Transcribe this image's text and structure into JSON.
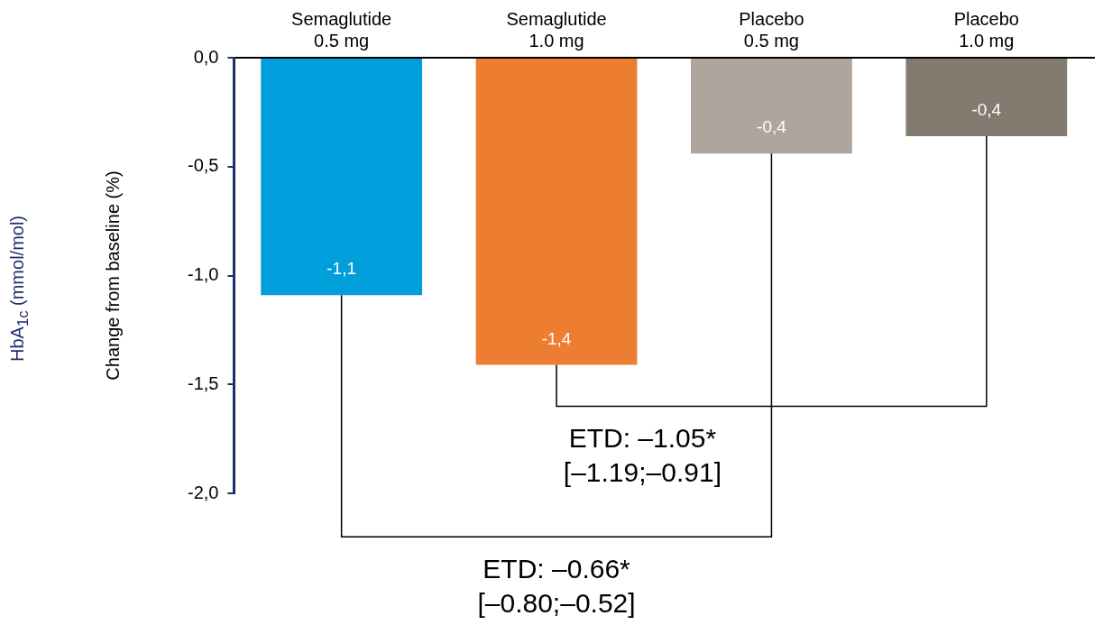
{
  "chart_data": {
    "type": "bar",
    "ylabel": "Change from baseline (%)",
    "categories": [
      "Semaglutide\n0.5 mg",
      "Semaglutide\n1.0 mg",
      "Placebo\n0.5 mg",
      "Placebo\n1.0 mg"
    ],
    "values": [
      -1.09,
      -1.41,
      -0.44,
      -0.36
    ],
    "colors": [
      "#009fdb",
      "#ed7d31",
      "#afa59d",
      "#847b70"
    ],
    "value_labels": [
      "-1,1",
      "-1,4",
      "-0,4",
      "-0,4"
    ],
    "ylim": [
      -2,
      0
    ],
    "yticks": [
      {
        "value": -2,
        "label": "-2,0"
      },
      {
        "value": -1.5,
        "label": "-1,5"
      },
      {
        "value": -1,
        "label": "-1,0"
      },
      {
        "value": -0.5,
        "label": "-0,5"
      },
      {
        "value": 0,
        "label": "0,0"
      }
    ],
    "grid": false,
    "legend": false,
    "annotations": [
      "ETD: –1.05*\n[–1.19;–0.91]",
      "ETD: –0.66*\n[–0.80;–0.52]",
      "HbA$_{1c}$ (mmol/mol)"
    ]
  }
}
